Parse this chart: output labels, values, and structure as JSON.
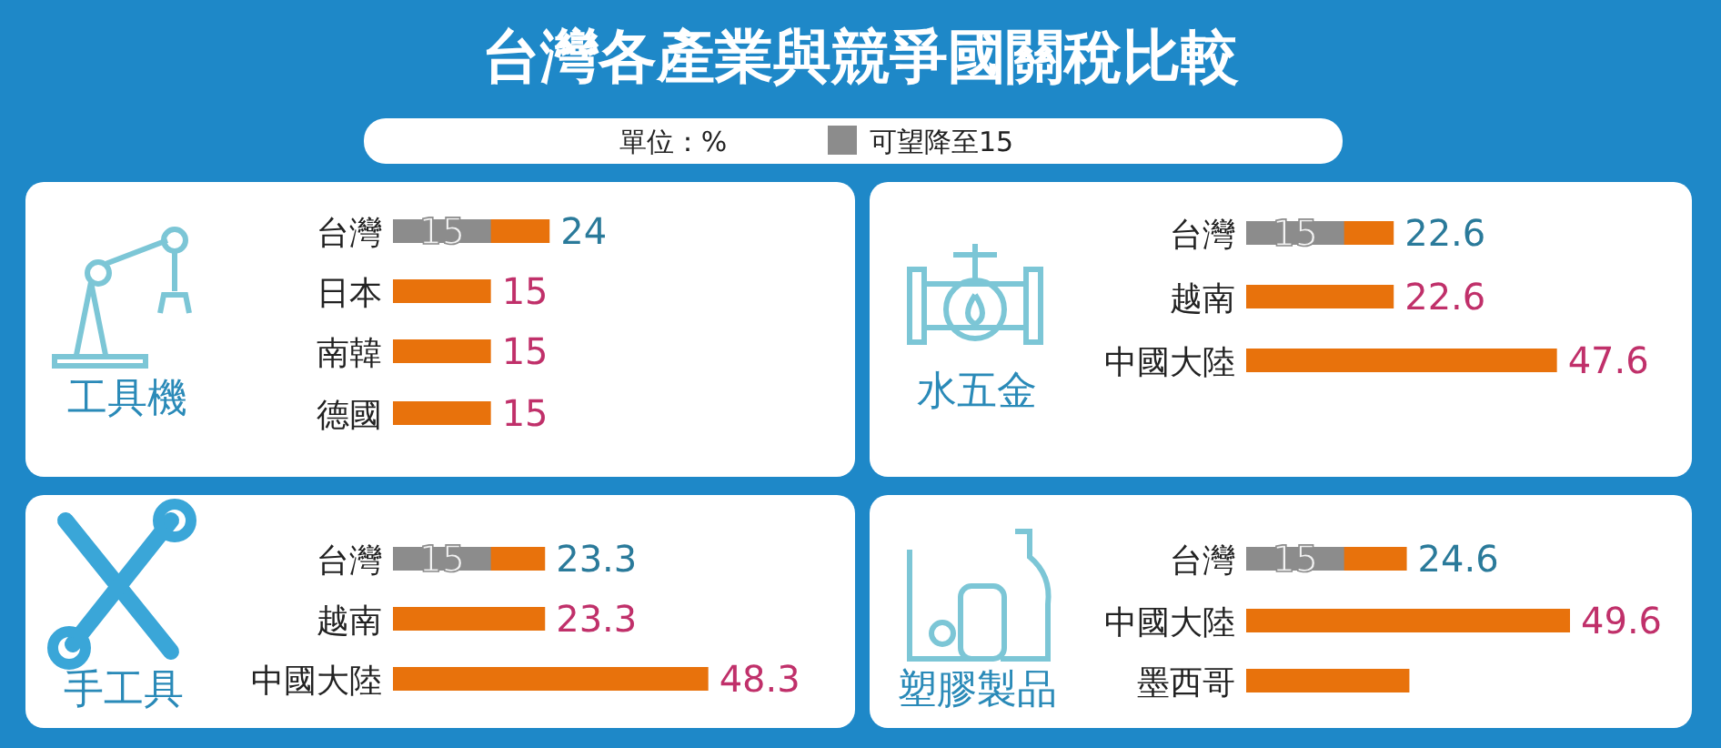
{
  "chart_data": [
    {
      "type": "other",
      "title": "台灣各產業與競爭國關稅比較",
      "annotations": [
        "單位：%",
        "可望降至15"
      ]
    },
    {
      "type": "bar",
      "title": "工具機",
      "orientation": "horizontal",
      "categories": [
        "台灣",
        "日本",
        "南韓",
        "德國"
      ],
      "series": [
        {
          "color": "#e8720c",
          "values": [
            24,
            15,
            15,
            15
          ],
          "value_labels": [
            "24",
            "15",
            "15",
            "15"
          ]
        },
        {
          "color": "#8c8c8c",
          "values": [
            15,
            null,
            null,
            null
          ],
          "value_labels": [
            "15",
            null,
            null,
            null
          ]
        }
      ]
    },
    {
      "type": "bar",
      "title": "水五金",
      "orientation": "horizontal",
      "categories": [
        "台灣",
        "越南",
        "中國大陸"
      ],
      "series": [
        {
          "color": "#e8720c",
          "values": [
            22.6,
            22.6,
            47.6
          ],
          "value_labels": [
            "22.6",
            "22.6",
            "47.6"
          ]
        },
        {
          "color": "#8c8c8c",
          "values": [
            15,
            null,
            null
          ],
          "value_labels": [
            "15",
            null,
            null
          ]
        }
      ]
    },
    {
      "type": "bar",
      "title": "手工具",
      "orientation": "horizontal",
      "categories": [
        "台灣",
        "越南",
        "中國大陸"
      ],
      "series": [
        {
          "color": "#e8720c",
          "values": [
            23.3,
            23.3,
            48.3
          ],
          "value_labels": [
            "23.3",
            "23.3",
            "48.3"
          ]
        },
        {
          "color": "#8c8c8c",
          "values": [
            15,
            null,
            null
          ],
          "value_labels": [
            "15",
            null,
            null
          ]
        }
      ]
    },
    {
      "type": "bar",
      "title": "塑膠製品",
      "orientation": "horizontal",
      "categories": [
        "台灣",
        "中國大陸",
        "墨西哥"
      ],
      "series": [
        {
          "color": "#e8720c",
          "values": [
            24.6,
            49.6,
            25
          ],
          "value_labels": [
            "24.6",
            "49.6",
            null
          ]
        },
        {
          "color": "#8c8c8c",
          "values": [
            15,
            null,
            null
          ],
          "value_labels": [
            "15",
            null,
            null
          ]
        }
      ]
    }
  ]
}
